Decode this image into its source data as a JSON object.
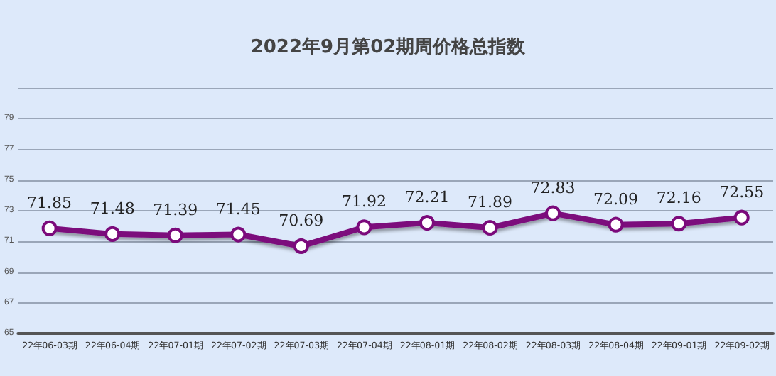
{
  "chart_data": {
    "type": "line",
    "title": "2022年9月第02期周价格总指数",
    "categories": [
      "22年06-03期",
      "22年06-04期",
      "22年07-01期",
      "22年07-02期",
      "22年07-03期",
      "22年07-04期",
      "22年08-01期",
      "22年08-02期",
      "22年08-03期",
      "22年08-04期",
      "22年09-01期",
      "22年09-02期"
    ],
    "series": [
      {
        "color": "#7b0a7b",
        "values": [
          71.85,
          71.48,
          71.39,
          71.45,
          70.69,
          71.92,
          72.21,
          71.89,
          72.83,
          72.09,
          72.16,
          72.55
        ]
      }
    ],
    "ylim": [
      65,
      81
    ],
    "yticks": [
      65,
      67,
      69,
      71,
      73,
      75,
      77,
      79,
      {
        "value": 81,
        "label": null
      }
    ],
    "grid": "y",
    "marker": "circle",
    "data_labels": true
  }
}
